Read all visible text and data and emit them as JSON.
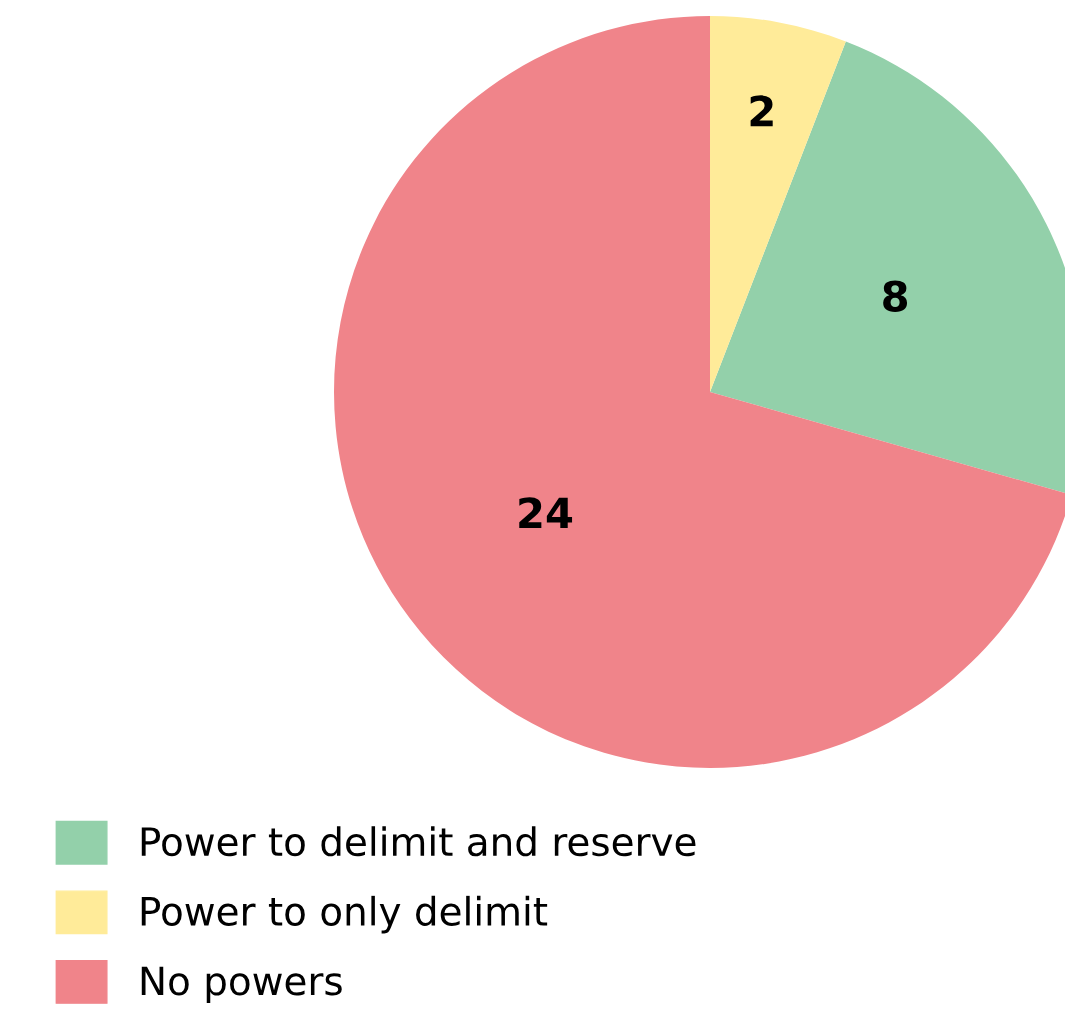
{
  "chart_data": {
    "type": "pie",
    "categories": [
      "Power to delimit and reserve",
      "Power to only delimit",
      "No powers"
    ],
    "values": [
      8,
      2,
      24
    ],
    "colors": [
      "#93d0aa",
      "#ffeb99",
      "#f0848a"
    ],
    "data_labels": true,
    "legend": "bottom left"
  }
}
